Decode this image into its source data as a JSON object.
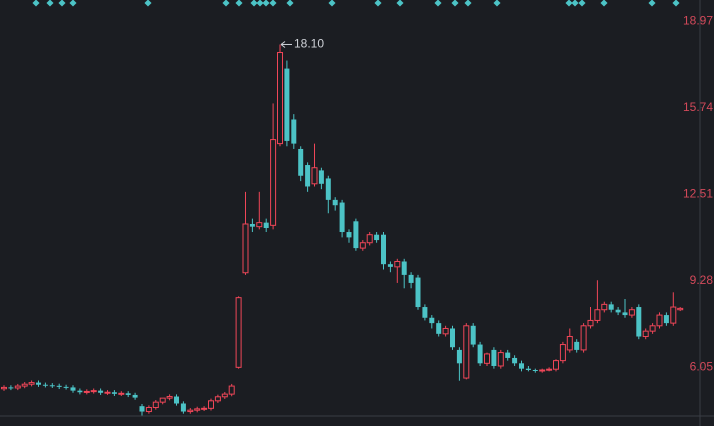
{
  "chart_data": {
    "type": "candlestick",
    "up_color": "#ef4658",
    "down_color": "#4cc3c6",
    "ylim": [
      3.86,
      19.76
    ],
    "yticks": [
      6.05,
      9.28,
      12.51,
      15.74,
      18.97
    ],
    "annotation": {
      "value": 18.1,
      "label": "18.10"
    },
    "open": [
      5.25,
      5.3,
      5.28,
      5.35,
      5.42,
      5.48,
      5.4,
      5.38,
      5.36,
      5.32,
      5.3,
      5.18,
      5.12,
      5.15,
      5.18,
      5.1,
      5.12,
      5.06,
      5.08,
      5.02,
      4.6,
      4.4,
      4.55,
      4.75,
      4.9,
      4.96,
      4.7,
      4.4,
      4.45,
      4.5,
      4.52,
      4.8,
      4.95,
      5.05,
      6.05,
      9.58,
      11.4,
      11.3,
      11.45,
      11.35,
      14.4,
      17.2,
      15.3,
      14.2,
      13.6,
      12.9,
      13.4,
      13.1,
      12.3,
      12.2,
      11.1,
      11.5,
      10.5,
      10.7,
      11.0,
      11.0,
      9.9,
      9.8,
      10.0,
      9.5,
      9.4,
      8.3,
      7.9,
      7.7,
      7.3,
      7.5,
      6.7,
      5.65,
      7.6,
      6.9,
      6.2,
      6.7,
      6.1,
      6.6,
      6.4,
      6.2,
      6.0,
      5.95,
      5.92,
      5.95,
      5.98,
      6.3,
      6.7,
      7.0,
      6.7,
      7.6,
      7.8,
      8.2,
      8.4,
      8.2,
      8.1,
      8.0,
      8.3,
      7.2,
      7.4,
      7.6,
      8.0,
      7.7,
      8.2
    ],
    "high": [
      5.38,
      5.38,
      5.43,
      5.5,
      5.56,
      5.56,
      5.48,
      5.46,
      5.44,
      5.4,
      5.38,
      5.26,
      5.23,
      5.26,
      5.26,
      5.2,
      5.2,
      5.16,
      5.16,
      5.1,
      4.68,
      4.63,
      4.83,
      4.83,
      5.04,
      5.04,
      4.78,
      4.53,
      4.58,
      4.6,
      4.88,
      5.03,
      5.13,
      5.43,
      8.7,
      12.6,
      11.6,
      12.6,
      11.6,
      15.9,
      18.1,
      17.5,
      15.5,
      14.3,
      13.7,
      14.4,
      13.5,
      13.2,
      12.4,
      12.3,
      11.2,
      11.6,
      10.8,
      11.1,
      11.1,
      11.1,
      10.0,
      10.1,
      10.1,
      9.6,
      9.5,
      8.4,
      8.0,
      7.8,
      7.6,
      7.6,
      6.8,
      7.7,
      7.7,
      7.0,
      6.6,
      6.8,
      6.7,
      6.7,
      6.5,
      6.3,
      6.1,
      6.0,
      6.0,
      6.05,
      6.35,
      7.0,
      7.5,
      7.1,
      7.7,
      8.3,
      9.3,
      8.5,
      8.5,
      8.3,
      8.6,
      8.3,
      8.4,
      7.5,
      7.7,
      8.1,
      8.1,
      8.85,
      8.3
    ],
    "low": [
      5.17,
      5.2,
      5.2,
      5.27,
      5.34,
      5.32,
      5.3,
      5.28,
      5.24,
      5.22,
      5.1,
      5.04,
      5.04,
      5.07,
      5.02,
      5.02,
      4.98,
      4.98,
      4.94,
      4.84,
      4.25,
      4.32,
      4.47,
      4.67,
      4.82,
      4.62,
      4.32,
      4.32,
      4.37,
      4.42,
      4.44,
      4.72,
      4.87,
      4.97,
      6.0,
      9.5,
      11.1,
      11.2,
      11.1,
      11.2,
      14.3,
      14.3,
      14.2,
      13.0,
      12.6,
      12.8,
      12.7,
      11.8,
      11.9,
      10.9,
      10.7,
      10.4,
      10.4,
      10.6,
      10.7,
      9.7,
      9.6,
      9.2,
      9.0,
      9.0,
      8.2,
      7.8,
      7.5,
      7.2,
      7.2,
      6.7,
      5.55,
      5.6,
      6.8,
      6.1,
      6.1,
      6.0,
      6.0,
      6.3,
      6.1,
      5.9,
      5.9,
      5.85,
      5.85,
      5.9,
      5.9,
      6.2,
      6.6,
      6.6,
      6.6,
      7.5,
      7.7,
      8.1,
      8.1,
      8.0,
      7.9,
      7.9,
      7.1,
      7.1,
      7.3,
      7.5,
      7.6,
      7.6,
      8.15
    ],
    "close": [
      5.3,
      5.28,
      5.35,
      5.42,
      5.48,
      5.4,
      5.38,
      5.36,
      5.32,
      5.3,
      5.18,
      5.12,
      5.15,
      5.18,
      5.1,
      5.12,
      5.06,
      5.08,
      5.02,
      4.92,
      4.4,
      4.55,
      4.75,
      4.9,
      4.96,
      4.7,
      4.4,
      4.45,
      4.5,
      4.52,
      4.8,
      4.95,
      5.05,
      5.35,
      8.65,
      11.4,
      11.3,
      11.45,
      11.25,
      14.55,
      17.8,
      14.5,
      14.4,
      13.2,
      12.8,
      13.5,
      12.9,
      12.3,
      12.1,
      11.1,
      10.9,
      10.5,
      10.7,
      11.0,
      10.8,
      9.9,
      9.8,
      10.0,
      9.5,
      9.2,
      8.3,
      7.9,
      7.7,
      7.3,
      7.5,
      6.8,
      6.2,
      7.6,
      6.9,
      6.2,
      6.55,
      6.1,
      6.6,
      6.4,
      6.2,
      6.0,
      5.95,
      5.92,
      5.95,
      5.98,
      6.3,
      6.9,
      7.2,
      6.7,
      7.6,
      7.8,
      8.2,
      8.4,
      8.2,
      8.1,
      8.0,
      8.2,
      7.2,
      7.4,
      7.6,
      8.0,
      7.7,
      8.3,
      8.25
    ]
  }
}
